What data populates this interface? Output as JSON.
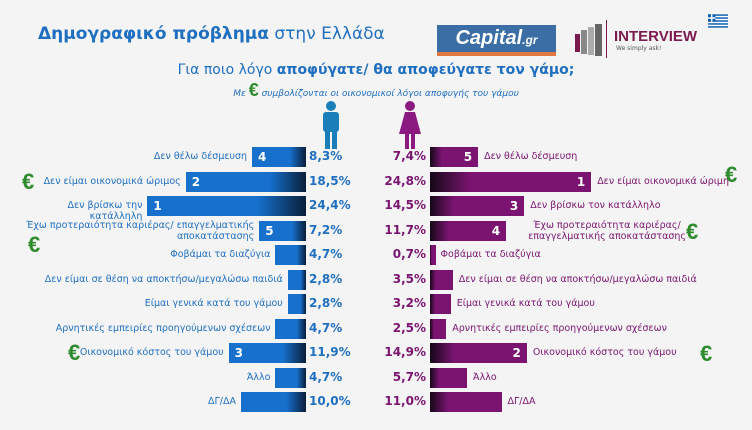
{
  "header": {
    "title_bold": "Δημογραφικό πρόβλημα",
    "title_rest": " στην Ελλάδα",
    "capital_logo": "Capital",
    "capital_logo_suffix": ".gr",
    "interview_logo": "INTERVIEW",
    "interview_tagline": "We simply ask!"
  },
  "question": {
    "pre": "Για ποιο λόγο ",
    "bold": "αποφύγατε/ θα αποφεύγατε τον γάμο",
    "post": ";",
    "note_pre": "Με ",
    "note_post": " συμβολίζονται οι οικονομικοί λόγοι αποφυγής του γάμου",
    "euro_symbol": "€"
  },
  "colors": {
    "male": "#1670cc",
    "female": "#7a1470",
    "euro": "#2e8b2e",
    "text_blue": "#1f6fc0"
  },
  "chart_data": {
    "type": "bar",
    "title": "Για ποιο λόγο αποφύγατε/ θα αποφεύγατε τον γάμο;",
    "series": [
      {
        "name": "male",
        "icon": "male-figure-icon",
        "labels": [
          "Δεν θέλω δέσμευση",
          "Δεν είμαι οικονομικά ώριμος",
          "Δεν βρίσκω την κατάλληλη",
          "Έχω προτεραιότητα καριέρας/ επαγγελματικής αποκατάστασης",
          "Φοβάμαι τα διαζύγια",
          "Δεν είμαι σε θέση να αποκτήσω/μεγαλώσω παιδιά",
          "Είμαι γενικά κατά του γάμου",
          "Αρνητικές εμπειρίες προηγούμενων σχέσεων",
          "Οικονομικό κόστος του γάμου",
          "Άλλο",
          "ΔΓ/ΔΑ"
        ],
        "values": [
          8.3,
          18.5,
          24.4,
          7.2,
          4.7,
          2.8,
          2.8,
          4.7,
          11.9,
          4.7,
          10.0
        ],
        "value_labels": [
          "8,3%",
          "18,5%",
          "24,4%",
          "7,2%",
          "4,7%",
          "2,8%",
          "2,8%",
          "4,7%",
          "11,9%",
          "4,7%",
          "10,0%"
        ],
        "ranks": [
          "4",
          "2",
          "1",
          "5",
          "",
          "",
          "",
          "",
          "3",
          "",
          ""
        ],
        "euro": [
          false,
          true,
          false,
          true,
          false,
          false,
          false,
          false,
          true,
          false,
          false
        ]
      },
      {
        "name": "female",
        "icon": "female-figure-icon",
        "labels": [
          "Δεν θέλω δέσμευση",
          "Δεν είμαι οικονομικά ώριμη",
          "Δεν βρίσκω τον κατάλληλο",
          "Έχω προτεραιότητα καριέρας/ επαγγελματικής αποκατάστασης",
          "Φοβάμαι τα διαζύγια",
          "Δεν είμαι σε θέση να αποκτήσω/μεγαλώσω παιδιά",
          "Είμαι γενικά κατά του γάμου",
          "Αρνητικές εμπειρίες προηγούμενων σχέσεων",
          "Οικονομικό κόστος του γάμου",
          "Άλλο",
          "ΔΓ/ΔΑ"
        ],
        "values": [
          7.4,
          24.8,
          14.5,
          11.7,
          0.7,
          3.5,
          3.2,
          2.5,
          14.9,
          5.7,
          11.0
        ],
        "value_labels": [
          "7,4%",
          "24,8%",
          "14,5%",
          "11,7%",
          "0,7%",
          "3,5%",
          "3,2%",
          "2,5%",
          "14,9%",
          "5,7%",
          "11,0%"
        ],
        "ranks": [
          "5",
          "1",
          "3",
          "4",
          "",
          "",
          "",
          "",
          "2",
          "",
          ""
        ],
        "euro": [
          false,
          true,
          false,
          true,
          false,
          false,
          false,
          false,
          true,
          false,
          false
        ]
      }
    ]
  }
}
